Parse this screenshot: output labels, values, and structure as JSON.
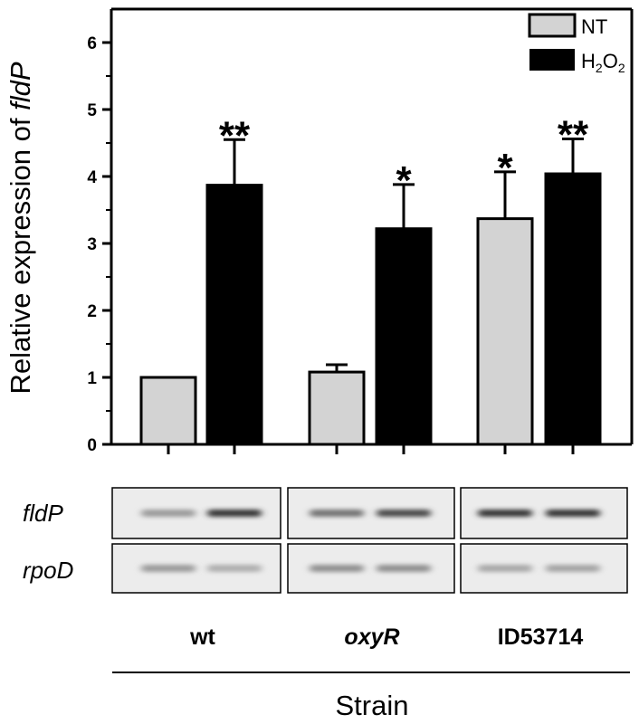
{
  "chart_data": {
    "type": "bar",
    "ylabel_prefix": "Relative expression of ",
    "ylabel_gene": "fldP",
    "xlabel": "Strain",
    "ylim": [
      0,
      6.5
    ],
    "yticks": [
      "0",
      "1",
      "2",
      "3",
      "4",
      "5",
      "6"
    ],
    "categories": [
      {
        "label": "wt",
        "italic": false
      },
      {
        "label": "oxyR",
        "italic": true
      },
      {
        "label": "ID53714",
        "italic": false
      }
    ],
    "series": [
      {
        "name": "NT",
        "color": "#d3d3d3",
        "values": [
          1.0,
          1.08,
          3.37
        ],
        "errors": [
          0.0,
          0.11,
          0.7
        ],
        "significance": [
          "",
          "",
          "*"
        ]
      },
      {
        "name": "H2O2",
        "name_main": "H",
        "name_sub1": "2",
        "name_mid": "O",
        "name_sub2": "2",
        "color": "#000000",
        "values": [
          3.87,
          3.22,
          4.04
        ],
        "errors": [
          0.68,
          0.66,
          0.52
        ],
        "significance": [
          "**",
          "*",
          "**"
        ]
      }
    ],
    "legend_position": "top-right",
    "gel_rows": [
      "fldP",
      "rpoD"
    ],
    "gel_band_intensity": {
      "fldP": [
        [
          0.35,
          0.85
        ],
        [
          0.55,
          0.75
        ],
        [
          0.85,
          0.85
        ]
      ],
      "rpoD": [
        [
          0.35,
          0.25
        ],
        [
          0.4,
          0.4
        ],
        [
          0.28,
          0.3
        ]
      ]
    }
  }
}
